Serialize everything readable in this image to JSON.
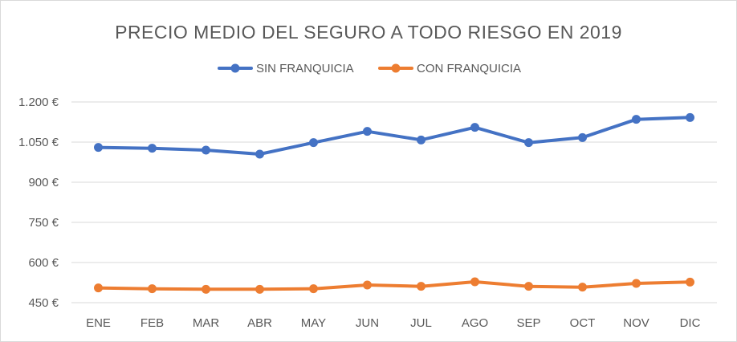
{
  "chart_data": {
    "type": "line",
    "title": "PRECIO MEDIO DEL SEGURO A TODO RIESGO EN 2019",
    "xlabel": "",
    "ylabel": "",
    "categories": [
      "ENE",
      "FEB",
      "MAR",
      "ABR",
      "MAY",
      "JUN",
      "JUL",
      "AGO",
      "SEP",
      "OCT",
      "NOV",
      "DIC"
    ],
    "ylim": [
      450,
      1200
    ],
    "yticks": [
      450,
      600,
      750,
      900,
      1050,
      1200
    ],
    "ytick_labels": [
      "450 €",
      "600 €",
      "750 €",
      "900 €",
      "1.050 €",
      "1.200 €"
    ],
    "grid": true,
    "legend_position": "top",
    "series": [
      {
        "name": "SIN FRANQUICIA",
        "color": "#4472c4",
        "values": [
          1030,
          1027,
          1020,
          1005,
          1048,
          1090,
          1058,
          1105,
          1048,
          1067,
          1135,
          1142
        ]
      },
      {
        "name": "CON FRANQUICIA",
        "color": "#ed7d31",
        "values": [
          505,
          502,
          500,
          500,
          502,
          516,
          511,
          528,
          511,
          508,
          522,
          527
        ]
      }
    ]
  }
}
